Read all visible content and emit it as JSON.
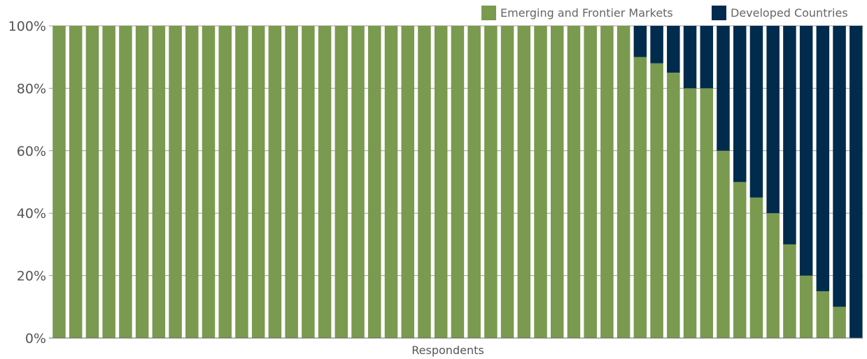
{
  "chart_data": {
    "type": "bar",
    "stacked": true,
    "xlabel": "Respondents",
    "ylabel": "",
    "ylim": [
      0,
      100
    ],
    "yticks": [
      "0%",
      "20%",
      "40%",
      "60%",
      "80%",
      "100%"
    ],
    "grid": true,
    "legend_position": "top-right",
    "series": [
      {
        "name": "Emerging and Frontier Markets",
        "color": "#7a9a4f",
        "values": [
          100,
          100,
          100,
          100,
          100,
          100,
          100,
          100,
          100,
          100,
          100,
          100,
          100,
          100,
          100,
          100,
          100,
          100,
          100,
          100,
          100,
          100,
          100,
          100,
          100,
          100,
          100,
          100,
          100,
          100,
          100,
          100,
          100,
          100,
          100,
          90,
          88,
          85,
          80,
          80,
          60,
          50,
          45,
          40,
          30,
          20,
          15,
          10,
          0
        ]
      },
      {
        "name": "Developed Countries",
        "color": "#002b4d",
        "values": [
          0,
          0,
          0,
          0,
          0,
          0,
          0,
          0,
          0,
          0,
          0,
          0,
          0,
          0,
          0,
          0,
          0,
          0,
          0,
          0,
          0,
          0,
          0,
          0,
          0,
          0,
          0,
          0,
          0,
          0,
          0,
          0,
          0,
          0,
          0,
          10,
          12,
          15,
          20,
          20,
          40,
          50,
          55,
          60,
          70,
          80,
          85,
          90,
          100
        ]
      }
    ]
  }
}
